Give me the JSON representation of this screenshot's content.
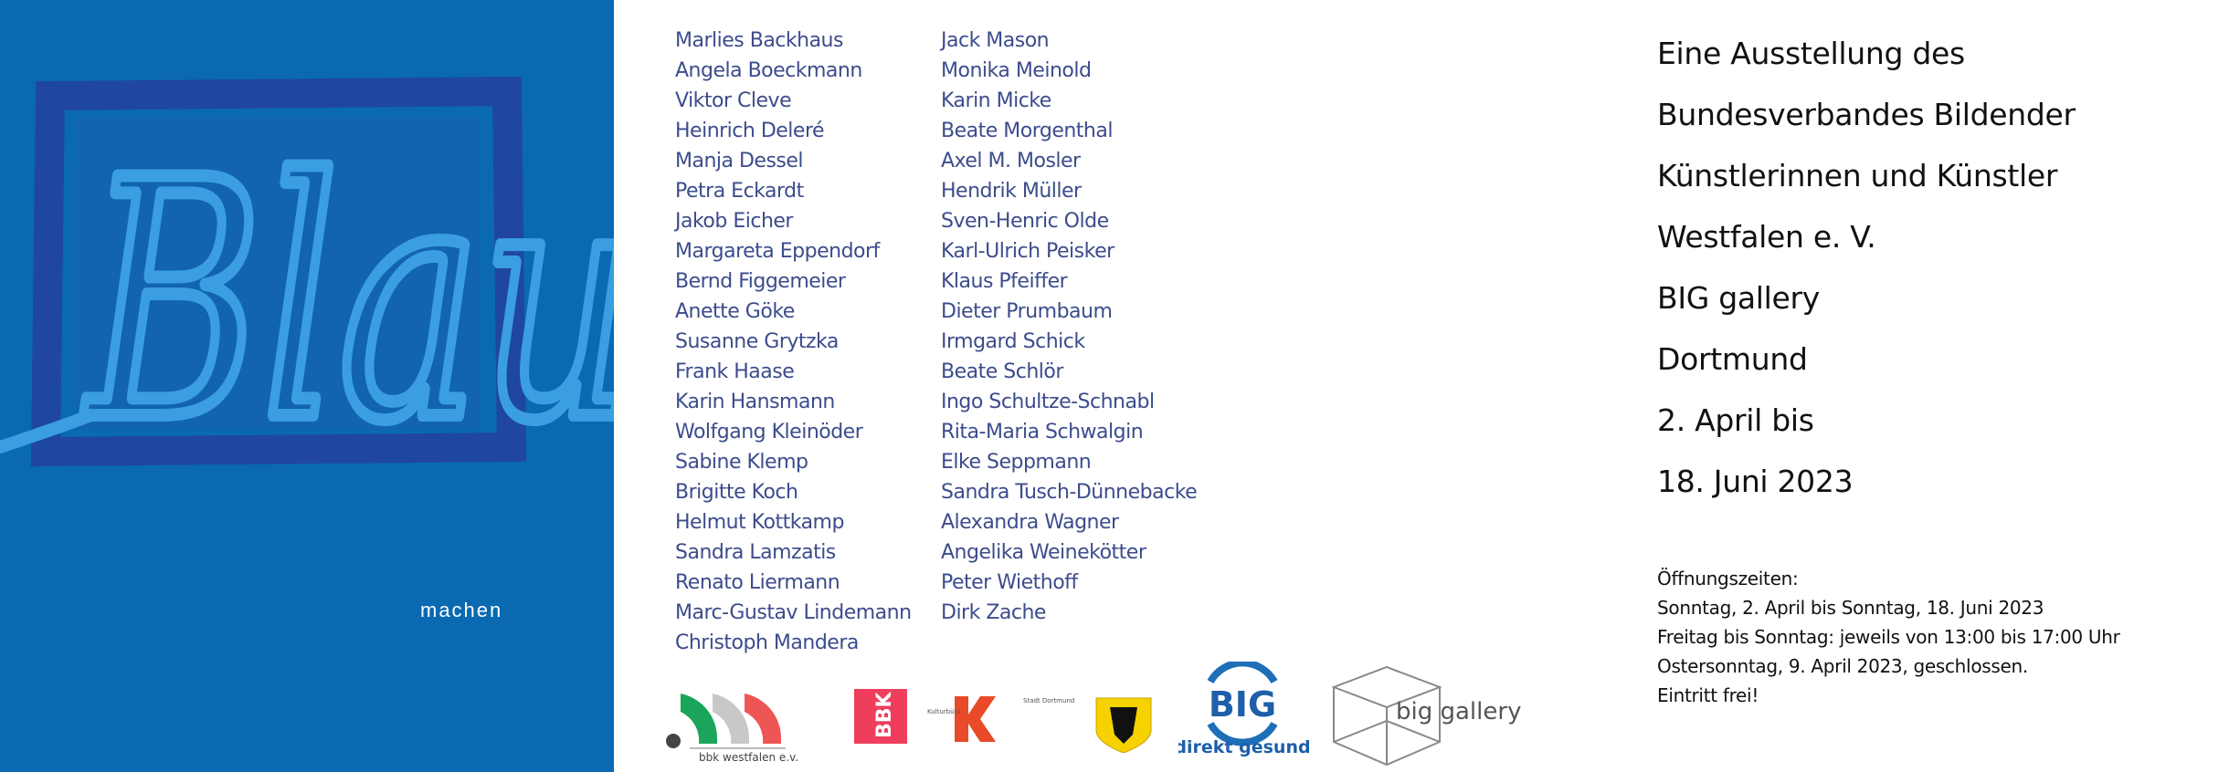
{
  "cover": {
    "title_art": "Blau",
    "subtitle": "machen",
    "colors": {
      "background": "#0a69b1",
      "frame": "#1f47a0",
      "lettering": "#3a9ee0"
    }
  },
  "artists": {
    "column1": [
      "Marlies Backhaus",
      "Angela Boeckmann",
      "Viktor Cleve",
      "Heinrich Deleré",
      "Manja Dessel",
      "Petra Eckardt",
      "Jakob Eicher",
      "Margareta Eppendorf",
      "Bernd Figgemeier",
      "Anette Göke",
      "Susanne Grytzka",
      "Frank Haase",
      "Karin Hansmann",
      "Wolfgang Kleinöder",
      "Sabine Klemp",
      "Brigitte Koch",
      "Helmut Kottkamp",
      "Sandra Lamzatis",
      "Renato Liermann",
      "Marc-Gustav Lindemann",
      "Christoph Mandera"
    ],
    "column2": [
      "Jack Mason",
      "Monika Meinold",
      "Karin Micke",
      "Beate Morgenthal",
      "Axel M. Mosler",
      "Hendrik Müller",
      "Sven-Henric Olde",
      "Karl-Ulrich Peisker",
      "Klaus Pfeiffer",
      "Dieter Prumbaum",
      "Irmgard Schick",
      "Beate Schlör",
      "Ingo Schultze-Schnabl",
      "Rita-Maria Schwalgin",
      "Elke Seppmann",
      "Sandra Tusch-Dünnebacke",
      "Alexandra Wagner",
      "Angelika Weinekötter",
      "Peter Wiethoff",
      "Dirk Zache"
    ]
  },
  "info": {
    "lines": [
      "Eine Ausstellung des",
      "Bundesverbandes Bildender",
      "Künstlerinnen und Künstler",
      "Westfalen e. V.",
      "BIG gallery",
      "Dortmund",
      "2. April bis",
      "18. Juni 2023"
    ]
  },
  "hours": {
    "lines": [
      "Öffnungszeiten:",
      "Sonntag, 2. April bis Sonntag, 18. Juni 2023",
      "Freitag bis Sonntag: jeweils von 13:00 bis 17:00 Uhr",
      "Ostersonntag, 9. April 2023, geschlossen.",
      "Eintritt frei!"
    ]
  },
  "logos": {
    "bbk_westfalen": "bbk westfalen e.v.",
    "bbk": "BBK",
    "kulturbuero": "Kulturbüro",
    "stadt_dortmund": "Stadt Dortmund",
    "big": "BIG",
    "big_tagline": "direkt gesund",
    "big_gallery": "big gallery"
  }
}
